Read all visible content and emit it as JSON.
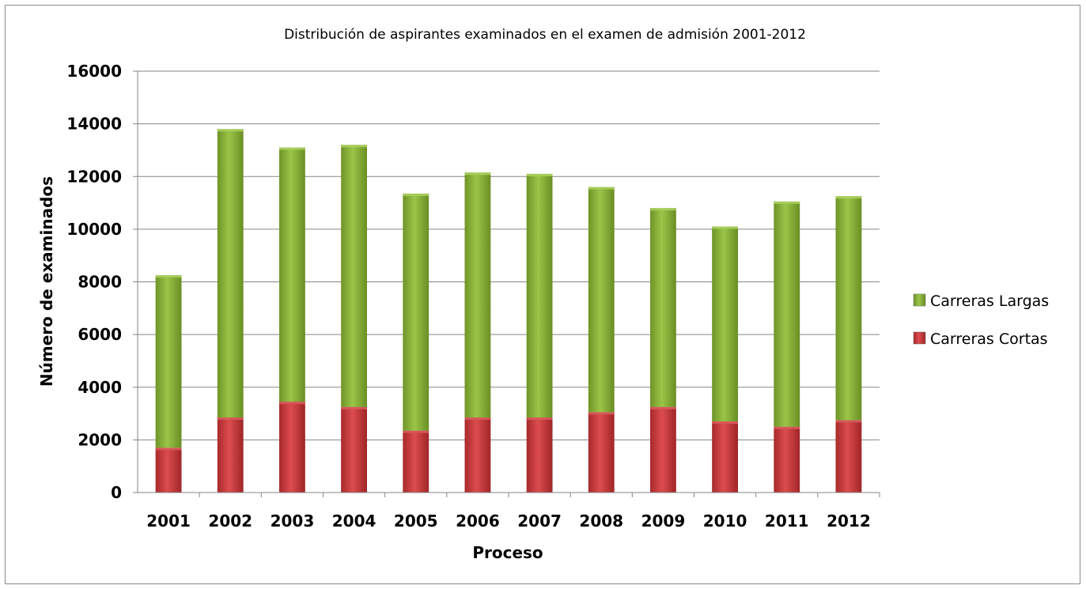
{
  "chart_data": {
    "type": "bar",
    "stacked": true,
    "title": "Distribución de aspirantes examinados en el examen de admisión 2001-2012",
    "xlabel": "Proceso",
    "ylabel": "Número de examinados",
    "ylim": [
      0,
      16000
    ],
    "yticks": [
      "0",
      "2000",
      "4000",
      "6000",
      "8000",
      "10000",
      "12000",
      "14000",
      "16000"
    ],
    "grid": true,
    "legend_position": "right",
    "categories": [
      "2001",
      "2002",
      "2003",
      "2004",
      "2005",
      "2006",
      "2007",
      "2008",
      "2009",
      "2010",
      "2011",
      "2012"
    ],
    "series": [
      {
        "name": "Carreras Cortas",
        "color": "#c0383a",
        "values": [
          1700,
          2850,
          3450,
          3250,
          2350,
          2850,
          2850,
          3050,
          3250,
          2700,
          2500,
          2750
        ]
      },
      {
        "name": "Carreras Largas",
        "color": "#8ab23a",
        "values": [
          6550,
          10950,
          9650,
          9950,
          9000,
          9300,
          9250,
          8550,
          7550,
          7400,
          8550,
          8500
        ]
      }
    ],
    "legend_order": [
      "Carreras Largas",
      "Carreras Cortas"
    ]
  }
}
